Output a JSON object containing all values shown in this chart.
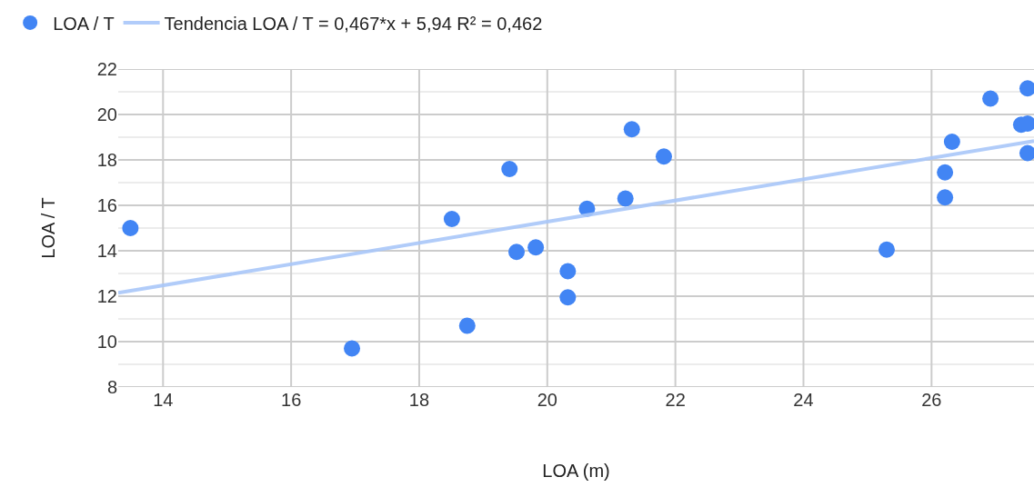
{
  "chart_data": {
    "type": "scatter",
    "xlabel": "LOA (m)",
    "ylabel": "LOA / T",
    "xlim": [
      13.3,
      27.6
    ],
    "xticks": [
      14,
      16,
      18,
      20,
      22,
      24,
      26
    ],
    "ylim": [
      8,
      22
    ],
    "yticks": [
      8,
      {
        "value": 9,
        "label": null
      },
      10,
      {
        "value": 11,
        "label": null
      },
      12,
      {
        "value": 13,
        "label": null
      },
      14,
      {
        "value": 15,
        "label": null
      },
      16,
      {
        "value": 17,
        "label": null
      },
      18,
      {
        "value": 19,
        "label": null
      },
      20,
      {
        "value": 21,
        "label": null
      },
      22
    ],
    "grid": true,
    "legend": "top left",
    "marker": "circle",
    "series": [
      {
        "name": "LOA / T",
        "color": "#4285f4",
        "x": [
          13.49,
          16.95,
          18.51,
          18.75,
          19.41,
          19.52,
          19.82,
          20.32,
          20.32,
          20.62,
          21.22,
          21.32,
          21.82,
          25.3,
          26.21,
          26.21,
          26.32,
          26.92,
          27.4,
          27.5,
          27.5,
          27.5
        ],
        "values": [
          15.0,
          9.7,
          15.4,
          10.7,
          17.6,
          13.95,
          14.15,
          13.1,
          11.95,
          15.85,
          16.3,
          19.35,
          18.15,
          14.05,
          17.45,
          16.35,
          18.8,
          20.7,
          19.55,
          19.6,
          21.15,
          18.3
        ]
      },
      {
        "name": "Tendencia LOA / T = 0,467*x + 5,94 R² = 0,462",
        "color": "#a9c7f9",
        "type": "line",
        "marker": "none",
        "x": [
          13.3,
          27.6
        ],
        "values": [
          12.15,
          18.83
        ]
      }
    ]
  }
}
